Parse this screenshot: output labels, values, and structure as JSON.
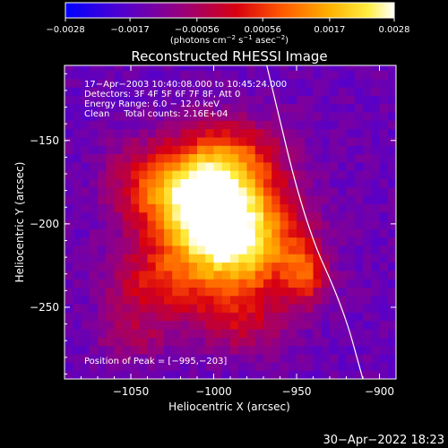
{
  "chart_data": {
    "type": "heatmap",
    "title": "Reconstructed RHESSI Image",
    "xlabel": "Heliocentric X (arcsec)",
    "ylabel": "Heliocentric Y (arcsec)",
    "xlim": [
      -1090,
      -890
    ],
    "ylim": [
      -293,
      -105
    ],
    "x_ticks": [
      -1050,
      -1000,
      -950,
      -900
    ],
    "x_tick_labels": [
      "−1050",
      "−1000",
      "−950",
      "−900"
    ],
    "y_ticks": [
      -150,
      -200,
      -250
    ],
    "y_tick_labels": [
      "−150",
      "−200",
      "−250"
    ],
    "colorbar": {
      "range": [
        -0.0028,
        0.0028
      ],
      "ticks": [
        -0.0028,
        -0.0017,
        -0.00056,
        0.00056,
        0.0017,
        0.0028
      ],
      "tick_labels": [
        "−0.0028",
        "−0.0017",
        "−0.00056",
        "0.00056",
        "0.0017",
        "0.0028"
      ],
      "unit_parts": [
        "(photons cm",
        "−2",
        " s",
        "−1",
        " asec",
        "−2",
        ")"
      ]
    },
    "annotations": [
      "17−Apr−2003 10:40:08.000 to 10:45:24.000",
      "Detectors: 3F 4F 5F 6F 7F 8F, Att 0",
      "Energy Range: 6.0 − 12.0 keV",
      "Clean     Total counts: 2.16E+04"
    ],
    "peak_label": "Position of Peak = [−995,−203]",
    "peak": [
      -995,
      -203
    ],
    "limb_curve": [
      [
        -968,
        -105
      ],
      [
        -945,
        -200
      ],
      [
        -922,
        -250
      ],
      [
        -910,
        -293
      ]
    ],
    "sources": [
      {
        "x": -1000,
        "y": -200,
        "sx": 26,
        "sy": 28,
        "amp": 0.0026
      },
      {
        "x": -1012,
        "y": -180,
        "sx": 20,
        "sy": 16,
        "amp": 0.0011
      },
      {
        "x": -975,
        "y": -212,
        "sx": 22,
        "sy": 20,
        "amp": 0.0011
      },
      {
        "x": -945,
        "y": -230,
        "sx": 9,
        "sy": 13,
        "amp": 0.0012
      },
      {
        "x": -1045,
        "y": -175,
        "sx": 16,
        "sy": 18,
        "amp": 0.0006
      },
      {
        "x": -1040,
        "y": -238,
        "sx": 18,
        "sy": 14,
        "amp": 0.0008
      },
      {
        "x": -1050,
        "y": -268,
        "sx": 14,
        "sy": 10,
        "amp": 0.0006
      },
      {
        "x": -990,
        "y": -160,
        "sx": 22,
        "sy": 16,
        "amp": 0.0009
      },
      {
        "x": -985,
        "y": -258,
        "sx": 20,
        "sy": 14,
        "amp": 0.0007
      }
    ],
    "background_level": -0.0015,
    "grid": false
  },
  "footer": {
    "timestamp": "30−Apr−2022 18:23"
  }
}
